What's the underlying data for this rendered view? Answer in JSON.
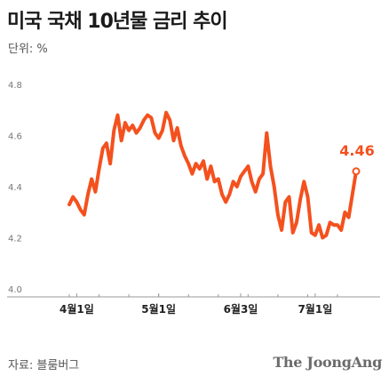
{
  "title": "미국 국채 10년물 금리 추이",
  "unit_label": "단위: %",
  "source": "자료: 블룸버그",
  "brand": "The JoongAng",
  "colors": {
    "line": "#f4511e",
    "grid": "#d9d9d9",
    "axis": "#999999",
    "title": "#1a1a1a",
    "muted": "#555555"
  },
  "chart_data": {
    "type": "line",
    "title": "미국 국채 10년물 금리 추이",
    "ylabel": "단위: %",
    "xlabel": "",
    "ylim": [
      4.0,
      4.8
    ],
    "yticks": [
      4.0,
      4.2,
      4.4,
      4.6,
      4.8
    ],
    "ytick_labels": [
      "4.0",
      "4.2",
      "4.4",
      "4.6",
      "4.8"
    ],
    "xtick_labels": [
      {
        "label": "4월1일",
        "index": 2
      },
      {
        "label": "5월1일",
        "index": 24
      },
      {
        "label": "6월3일",
        "index": 46
      },
      {
        "label": "7월1일",
        "index": 66
      }
    ],
    "grid": false,
    "series": [
      {
        "name": "",
        "values": [
          4.33,
          4.36,
          4.34,
          4.31,
          4.29,
          4.37,
          4.43,
          4.38,
          4.47,
          4.55,
          4.57,
          4.49,
          4.62,
          4.68,
          4.58,
          4.65,
          4.62,
          4.64,
          4.61,
          4.63,
          4.66,
          4.68,
          4.67,
          4.61,
          4.59,
          4.62,
          4.69,
          4.66,
          4.58,
          4.63,
          4.56,
          4.52,
          4.49,
          4.45,
          4.49,
          4.47,
          4.5,
          4.43,
          4.48,
          4.42,
          4.43,
          4.37,
          4.34,
          4.37,
          4.42,
          4.4,
          4.44,
          4.46,
          4.48,
          4.42,
          4.38,
          4.43,
          4.45,
          4.61,
          4.48,
          4.4,
          4.29,
          4.23,
          4.34,
          4.36,
          4.22,
          4.26,
          4.35,
          4.42,
          4.36,
          4.22,
          4.21,
          4.25,
          4.2,
          4.21,
          4.26,
          4.25,
          4.25,
          4.23,
          4.3,
          4.28,
          4.37,
          4.46
        ]
      }
    ],
    "annotations": [
      {
        "text": "4.46",
        "index": 77
      }
    ]
  }
}
